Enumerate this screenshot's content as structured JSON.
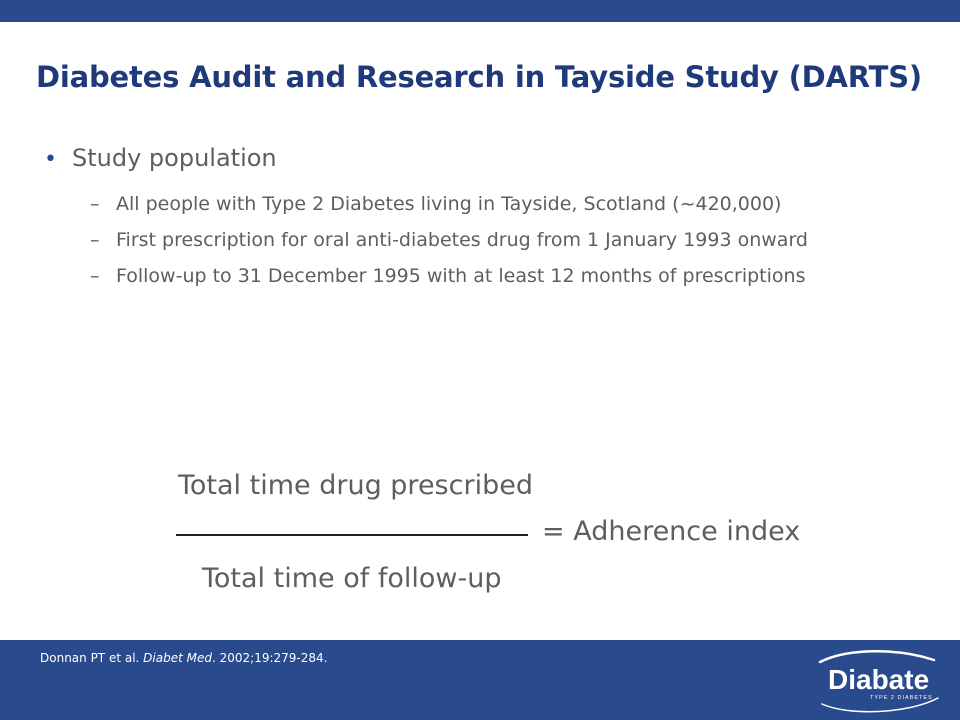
{
  "slide": {
    "title": "Diabetes Audit and Research in Tayside Study (DARTS)",
    "bullet": "Study population",
    "sub_items": [
      {
        "dash": "–",
        "text": "All people with Type 2 Diabetes living in Tayside, Scotland (~420,000)"
      },
      {
        "dash": "–",
        "text": "First prescription for oral anti-diabetes drug from 1 January 1993 onward"
      },
      {
        "dash": "–",
        "text": "Follow-up to 31 December 1995 with at least 12 months of prescriptions"
      }
    ],
    "formula": {
      "numerator": "Total time drug prescribed",
      "denominator": "Total time of follow-up",
      "result": "= Adherence index"
    }
  },
  "footer": {
    "citation_authors": "Donnan PT et al. ",
    "citation_journal": "Diabet Med",
    "citation_rest": ". 2002;19:279-284.",
    "logo_text": "Diabate",
    "logo_subtext": "TYPE 2 DIABETES"
  },
  "colors": {
    "brand_blue": "#2a4a8e",
    "title_blue": "#1f3a7a",
    "body_gray": "#5e5e5e"
  }
}
